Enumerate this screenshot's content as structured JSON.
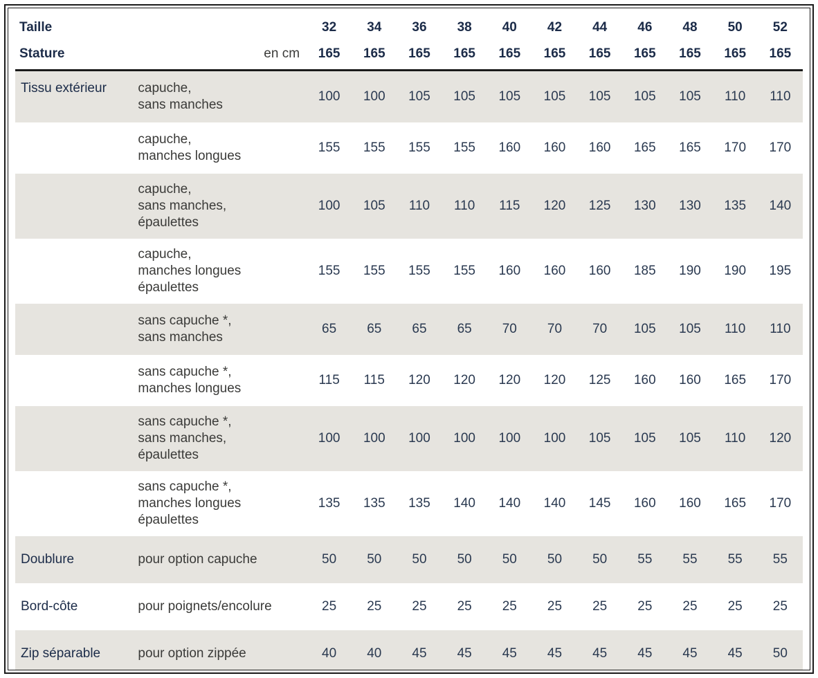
{
  "table": {
    "header": {
      "col1_label": "Taille",
      "col2_label": "Stature",
      "unit_label": "en cm",
      "sizes": [
        "32",
        "34",
        "36",
        "38",
        "40",
        "42",
        "44",
        "46",
        "48",
        "50",
        "52"
      ],
      "statures": [
        "165",
        "165",
        "165",
        "165",
        "165",
        "165",
        "165",
        "165",
        "165",
        "165",
        "165"
      ]
    },
    "rows": [
      {
        "category": "Tissu extérieur",
        "description": "capuche,\nsans manches",
        "values": [
          "100",
          "100",
          "105",
          "105",
          "105",
          "105",
          "105",
          "105",
          "105",
          "110",
          "110"
        ],
        "shaded": true
      },
      {
        "category": "",
        "description": "capuche,\nmanches longues",
        "values": [
          "155",
          "155",
          "155",
          "155",
          "160",
          "160",
          "160",
          "165",
          "165",
          "170",
          "170"
        ],
        "shaded": false
      },
      {
        "category": "",
        "description": "capuche,\nsans manches,\népaulettes",
        "values": [
          "100",
          "105",
          "110",
          "110",
          "115",
          "120",
          "125",
          "130",
          "130",
          "135",
          "140"
        ],
        "shaded": true
      },
      {
        "category": "",
        "description": "capuche,\nmanches longues\népaulettes",
        "values": [
          "155",
          "155",
          "155",
          "155",
          "160",
          "160",
          "160",
          "185",
          "190",
          "190",
          "195"
        ],
        "shaded": false
      },
      {
        "category": "",
        "description": "sans capuche *,\nsans manches",
        "values": [
          "65",
          "65",
          "65",
          "65",
          "70",
          "70",
          "70",
          "105",
          "105",
          "110",
          "110"
        ],
        "shaded": true
      },
      {
        "category": "",
        "description": "sans capuche *,\nmanches longues",
        "values": [
          "115",
          "115",
          "120",
          "120",
          "120",
          "120",
          "125",
          "160",
          "160",
          "165",
          "170"
        ],
        "shaded": false
      },
      {
        "category": "",
        "description": "sans capuche *,\nsans manches,\népaulettes",
        "values": [
          "100",
          "100",
          "100",
          "100",
          "100",
          "100",
          "105",
          "105",
          "105",
          "110",
          "120"
        ],
        "shaded": true
      },
      {
        "category": "",
        "description": "sans capuche *,\nmanches longues\népaulettes",
        "values": [
          "135",
          "135",
          "135",
          "140",
          "140",
          "140",
          "145",
          "160",
          "160",
          "165",
          "170"
        ],
        "shaded": false
      },
      {
        "category": "Doublure",
        "description": "pour option capuche",
        "values": [
          "50",
          "50",
          "50",
          "50",
          "50",
          "50",
          "50",
          "55",
          "55",
          "55",
          "55"
        ],
        "shaded": true
      },
      {
        "category": "Bord-côte",
        "description": "pour poignets/encolure",
        "values": [
          "25",
          "25",
          "25",
          "25",
          "25",
          "25",
          "25",
          "25",
          "25",
          "25",
          "25"
        ],
        "shaded": false
      },
      {
        "category": "Zip séparable",
        "description": "pour option zippée",
        "values": [
          "40",
          "40",
          "45",
          "45",
          "45",
          "45",
          "45",
          "45",
          "45",
          "45",
          "50"
        ],
        "shaded": true
      }
    ]
  },
  "colors": {
    "heading_text": "#1b2b48",
    "body_text": "#3a3a38",
    "value_text": "#2a3950",
    "shaded_row_background": "#e6e4df",
    "frame_border": "#1a1a1a"
  }
}
